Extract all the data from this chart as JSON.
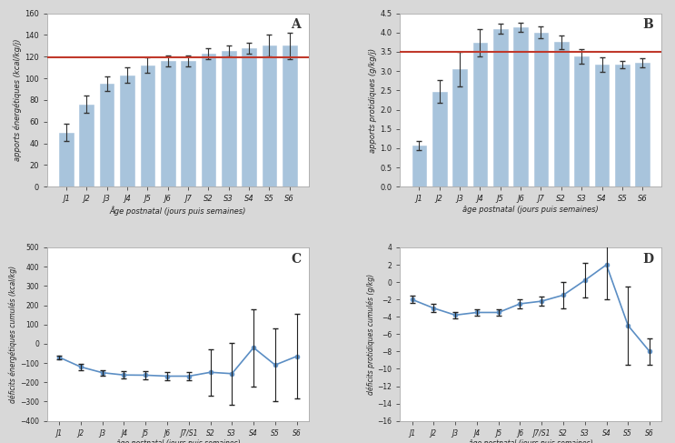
{
  "panel_A": {
    "categories": [
      "J1",
      "J2",
      "J3",
      "J4",
      "J5",
      "J6",
      "J7",
      "S2",
      "S3",
      "S4",
      "S5",
      "S6"
    ],
    "values": [
      50,
      76,
      95,
      103,
      112,
      116,
      116,
      123,
      125,
      128,
      130,
      130
    ],
    "errors": [
      8,
      8,
      7,
      7,
      7,
      5,
      5,
      5,
      5,
      5,
      10,
      12
    ],
    "ref_line": 119,
    "ylabel": "apports énergétiques (kcal/kg/j)",
    "xlabel": "Âge postnatal (jours puis semaines)",
    "ylim": [
      0,
      160
    ],
    "yticks": [
      0,
      20,
      40,
      60,
      80,
      100,
      120,
      140,
      160
    ],
    "label": "A"
  },
  "panel_B": {
    "categories": [
      "J1",
      "J2",
      "J3",
      "J4",
      "J5",
      "J6",
      "J7",
      "S2",
      "S3",
      "S4",
      "S5",
      "S6"
    ],
    "values": [
      1.07,
      2.47,
      3.05,
      3.73,
      4.1,
      4.13,
      4.0,
      3.75,
      3.38,
      3.17,
      3.17,
      3.22
    ],
    "errors": [
      0.12,
      0.3,
      0.45,
      0.35,
      0.12,
      0.12,
      0.15,
      0.18,
      0.18,
      0.18,
      0.1,
      0.12
    ],
    "ref_line": 3.5,
    "ylabel": "apports protidiques (g/kg/j)",
    "xlabel": "âge postnatal (jours puis semaines)",
    "ylim": [
      0,
      4.5
    ],
    "yticks": [
      0,
      0.5,
      1.0,
      1.5,
      2.0,
      2.5,
      3.0,
      3.5,
      4.0,
      4.5
    ],
    "label": "B"
  },
  "panel_C": {
    "categories": [
      "J1",
      "J2",
      "J3",
      "J4",
      "J5",
      "J6",
      "J7/S1",
      "S2",
      "S3",
      "S4",
      "S5",
      "S6"
    ],
    "values": [
      -70,
      -120,
      -150,
      -162,
      -163,
      -168,
      -168,
      -148,
      -155,
      -20,
      -110,
      -65
    ],
    "errors": [
      10,
      15,
      15,
      20,
      20,
      20,
      20,
      120,
      160,
      200,
      190,
      220
    ],
    "ylabel": "déficits énergétiques cumulés (kcal/kg)",
    "xlabel": "âge postnatal (jours puis semaines)",
    "ylim": [
      -400,
      500
    ],
    "yticks": [
      -400,
      -300,
      -200,
      -100,
      0,
      100,
      200,
      300,
      400,
      500
    ],
    "label": "C"
  },
  "panel_D": {
    "categories": [
      "J1",
      "J2",
      "J3",
      "J4",
      "J5",
      "J6",
      "J7/S1",
      "S2",
      "S3",
      "S4",
      "S5",
      "S6"
    ],
    "values": [
      -2.0,
      -3.0,
      -3.8,
      -3.5,
      -3.5,
      -2.5,
      -2.2,
      -1.5,
      0.2,
      2.0,
      -5.0,
      -8.0
    ],
    "errors": [
      0.4,
      0.5,
      0.4,
      0.4,
      0.4,
      0.5,
      0.5,
      1.5,
      2.0,
      4.0,
      4.5,
      1.5
    ],
    "ylabel": "déficits protidiques cumulés (g/kg)",
    "xlabel": "âge postnatal (jours puis semaines)",
    "ylim": [
      -16,
      4
    ],
    "yticks": [
      -16,
      -14,
      -12,
      -10,
      -8,
      -6,
      -4,
      -2,
      0,
      2,
      4
    ],
    "label": "D"
  },
  "bar_color": "#a8c4dc",
  "bar_edge_color": "#a8c4dc",
  "line_color": "#5b8ec4",
  "marker_color": "#5b8ec4",
  "ref_line_color": "#c0392b",
  "error_color": "#333333",
  "bg_color": "#ffffff",
  "fig_bg": "#d8d8d8",
  "spine_color": "#aaaaaa"
}
